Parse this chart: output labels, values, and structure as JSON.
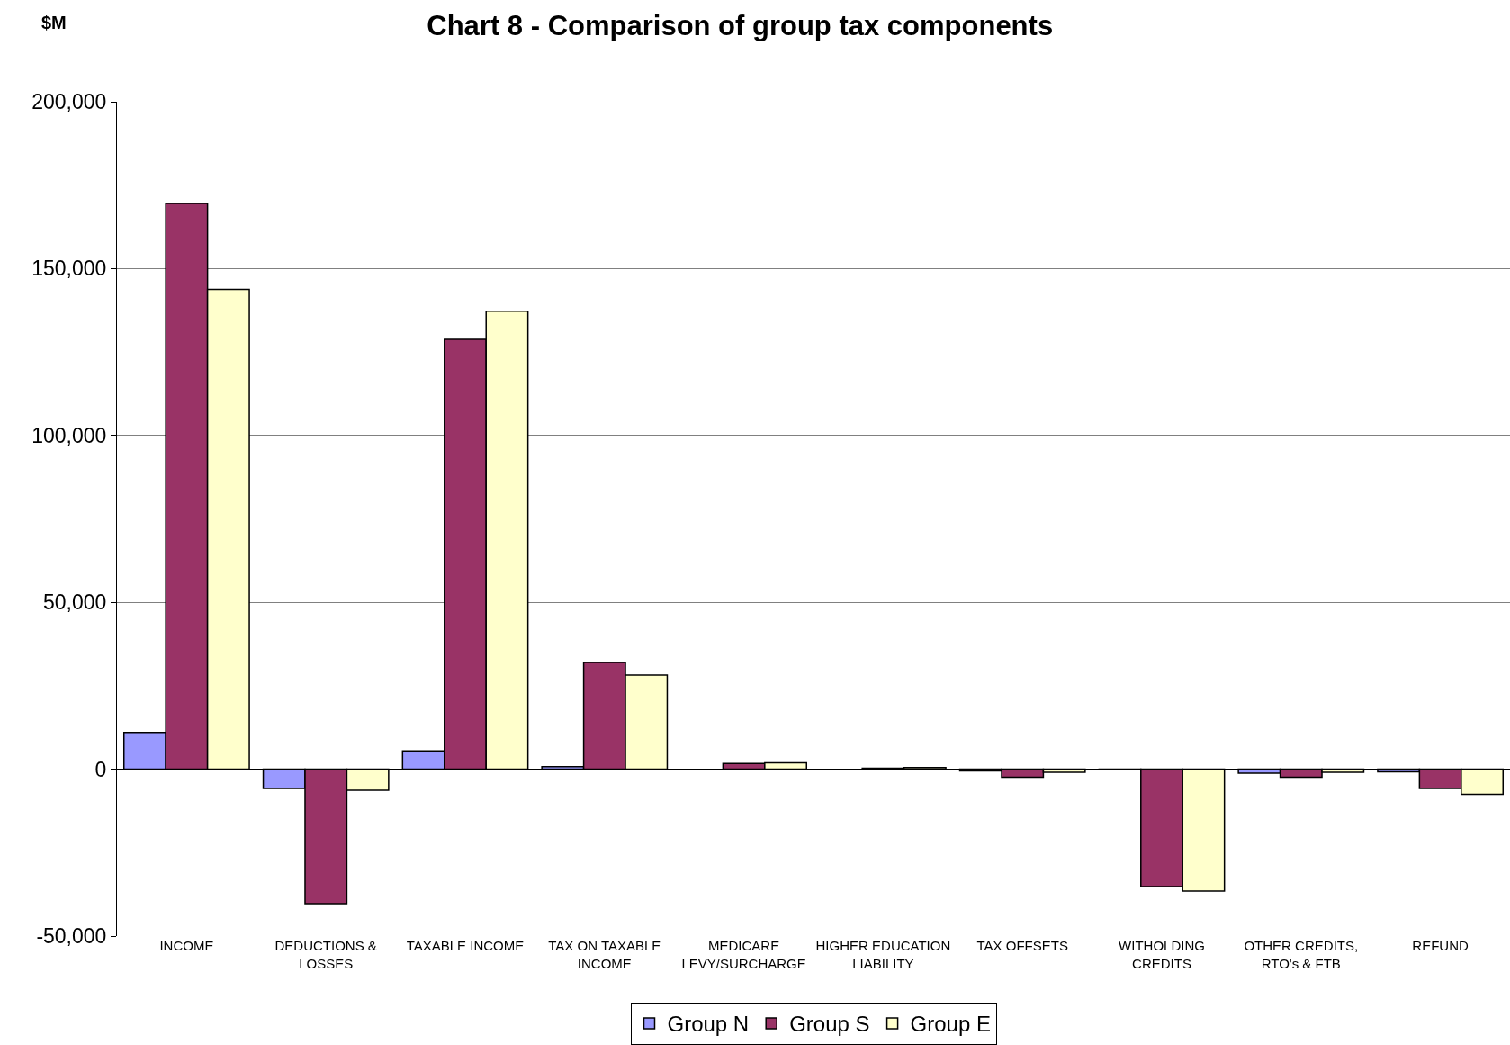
{
  "chart_data": {
    "type": "bar",
    "title": "Chart 8 - Comparison of group tax components",
    "ylabel": "$M",
    "categories": [
      "INCOME",
      "DEDUCTIONS &\nLOSSES",
      "TAXABLE INCOME",
      "TAX ON TAXABLE\nINCOME",
      "MEDICARE\nLEVY/SURCHARGE",
      "HIGHER EDUCATION\nLIABILITY",
      "TAX OFFSETS",
      "WITHOLDING\nCREDITS",
      "OTHER CREDITS,\nRTO's & FTB",
      "REFUND"
    ],
    "series": [
      {
        "name": "Group N",
        "color": "#9999ff",
        "values": [
          11000,
          -5800,
          5500,
          800,
          null,
          null,
          -500,
          -200,
          -1200,
          -800
        ]
      },
      {
        "name": "Group S",
        "color": "#993366",
        "values": [
          169500,
          -40300,
          128800,
          32000,
          1700,
          300,
          -2400,
          -35200,
          -2400,
          -5800
        ]
      },
      {
        "name": "Group E",
        "color": "#ffffcc",
        "values": [
          143800,
          -6300,
          137200,
          28200,
          1900,
          500,
          -900,
          -36500,
          -900,
          -7500
        ]
      }
    ],
    "ylim": [
      -50000,
      200000
    ],
    "yticks": [
      {
        "value": -50000,
        "label": "-50,000"
      },
      0,
      {
        "value": 50000,
        "label": "50,000"
      },
      {
        "value": 100000,
        "label": "100,000"
      },
      {
        "value": 150000,
        "label": "150,000"
      },
      {
        "value": 200000,
        "label": "200,000"
      }
    ],
    "grid": "y",
    "legend": "bottom"
  }
}
